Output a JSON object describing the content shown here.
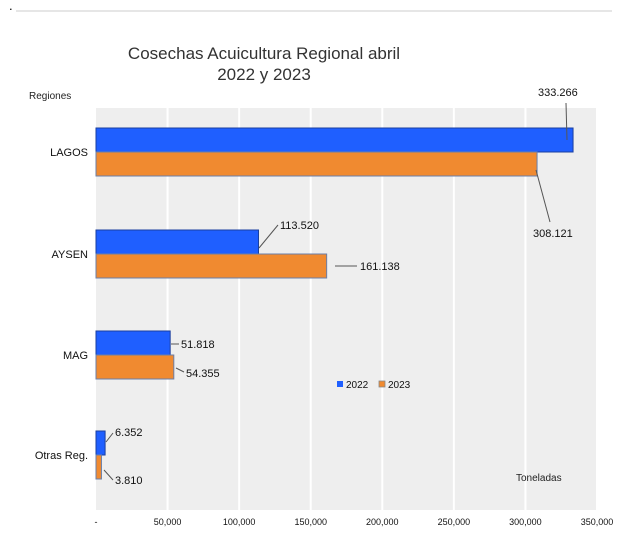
{
  "page": {
    "corner_mark": "."
  },
  "chart_data": {
    "type": "bar",
    "orientation": "horizontal",
    "title_lines": [
      "Cosechas Acuicultura  Regional abril",
      "2022 y 2023"
    ],
    "ylabel": "Regiones",
    "xlabel": "Toneladas",
    "categories": [
      "LAGOS",
      "AYSEN",
      "MAG",
      "Otras Reg."
    ],
    "series": [
      {
        "name": "2022",
        "color": "#1f5fff",
        "values": [
          333266,
          113520,
          51818,
          6352
        ],
        "labels": [
          "333.266",
          "113.520",
          "51.818",
          "6.352"
        ]
      },
      {
        "name": "2023",
        "color": "#f08a30",
        "values": [
          308121,
          161138,
          54355,
          3810
        ],
        "labels": [
          "308.121",
          "161.138",
          "54.355",
          "3.810"
        ]
      }
    ],
    "xlim": [
      0,
      350000
    ],
    "xticks": [
      0,
      50000,
      100000,
      150000,
      200000,
      250000,
      300000,
      350000
    ],
    "xtick_labels": [
      "-",
      "50,000",
      "100,000",
      "150,000",
      "200,000",
      "250,000",
      "300,000",
      "350,000"
    ],
    "grid": true,
    "legend_position": "center-right",
    "background_color": "#eeeeee",
    "gridline_color": "#ffffff"
  }
}
